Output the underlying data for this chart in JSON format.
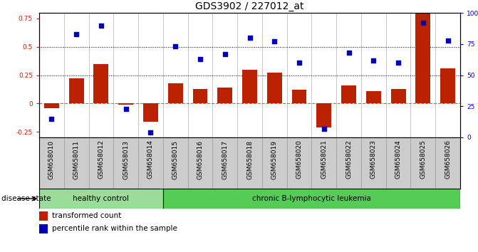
{
  "title": "GDS3902 / 227012_at",
  "samples": [
    "GSM658010",
    "GSM658011",
    "GSM658012",
    "GSM658013",
    "GSM658014",
    "GSM658015",
    "GSM658016",
    "GSM658017",
    "GSM658018",
    "GSM658019",
    "GSM658020",
    "GSM658021",
    "GSM658022",
    "GSM658023",
    "GSM658024",
    "GSM658025",
    "GSM658026"
  ],
  "bar_values": [
    -0.04,
    0.22,
    0.35,
    -0.01,
    -0.16,
    0.18,
    0.13,
    0.14,
    0.3,
    0.27,
    0.12,
    -0.21,
    0.16,
    0.11,
    0.13,
    0.87,
    0.31
  ],
  "scatter_pct": [
    15,
    83,
    90,
    23,
    4,
    73,
    63,
    67,
    80,
    77,
    60,
    7,
    68,
    62,
    60,
    92,
    78
  ],
  "bar_color": "#bb2200",
  "scatter_color": "#0000bb",
  "ylim_left": [
    -0.3,
    0.8
  ],
  "ylim_right": [
    0,
    100
  ],
  "yticks_left": [
    -0.25,
    0.0,
    0.25,
    0.5,
    0.75
  ],
  "ytick_labels_left": [
    "-0.25",
    "0",
    "0.25",
    "0.5",
    "0.75"
  ],
  "yticks_right": [
    0,
    25,
    50,
    75,
    100
  ],
  "ytick_labels_right": [
    "0",
    "25",
    "50",
    "75",
    "100%"
  ],
  "hlines": [
    0.25,
    0.5
  ],
  "hline_zero": 0.0,
  "group1_count": 5,
  "group2_count": 12,
  "group1_label": "healthy control",
  "group2_label": "chronic B-lymphocytic leukemia",
  "group1_color": "#99dd99",
  "group2_color": "#55cc55",
  "disease_state_label": "disease state",
  "legend_bar_label": "transformed count",
  "legend_scatter_label": "percentile rank within the sample",
  "plot_bg": "#ffffff",
  "xtick_bg": "#cccccc",
  "title_fontsize": 10,
  "tick_fontsize": 6.5,
  "label_fontsize": 8
}
